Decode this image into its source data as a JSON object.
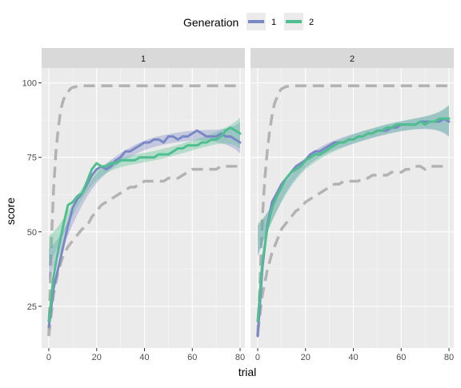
{
  "chart_data": {
    "type": "line",
    "facet_variable": "Generation",
    "facets": [
      {
        "label": "1",
        "reference_upper": {
          "x": [
            0,
            1,
            2,
            3,
            4,
            5,
            6,
            7,
            8,
            9,
            10,
            12,
            15,
            20,
            30,
            40,
            50,
            60,
            70,
            80
          ],
          "y": [
            15,
            45,
            64,
            77,
            85,
            91,
            94,
            96,
            97,
            98,
            98.5,
            98.8,
            99,
            99,
            99,
            99,
            99,
            99,
            99,
            99
          ]
        },
        "reference_lower": {
          "x": [
            0,
            2,
            4,
            6,
            8,
            10,
            12,
            14,
            16,
            18,
            20,
            22,
            24,
            26,
            28,
            30,
            32,
            34,
            36,
            38,
            40,
            42,
            44,
            46,
            48,
            50,
            52,
            54,
            56,
            58,
            60,
            62,
            64,
            66,
            68,
            70,
            72,
            74,
            76,
            78,
            80
          ],
          "y": [
            15,
            29,
            37,
            42,
            45,
            47,
            49,
            51,
            52,
            55,
            57,
            59,
            60,
            61,
            62,
            63,
            64,
            65,
            65,
            66,
            67,
            67,
            67,
            67,
            67,
            68,
            68,
            68,
            69,
            70,
            71,
            71,
            71,
            71,
            71,
            71,
            72,
            72,
            72,
            72,
            72
          ]
        },
        "series": [
          {
            "name": "1",
            "x": [
              0,
              2,
              4,
              6,
              8,
              10,
              12,
              14,
              16,
              18,
              20,
              22,
              24,
              26,
              28,
              30,
              32,
              34,
              36,
              38,
              40,
              42,
              44,
              46,
              48,
              50,
              52,
              54,
              56,
              58,
              60,
              62,
              64,
              66,
              68,
              70,
              72,
              74,
              76,
              78,
              80
            ],
            "y": [
              18,
              31,
              38,
              45,
              52,
              58,
              61,
              63,
              66,
              69,
              71,
              72,
              71,
              72,
              74,
              75,
              77,
              77,
              78,
              79,
              80,
              80,
              81,
              81,
              80,
              82,
              82,
              81,
              82,
              82,
              83,
              84,
              83,
              82,
              82,
              82,
              83,
              82,
              82,
              81,
              80
            ]
          },
          {
            "name": "2",
            "x": [
              0,
              2,
              4,
              6,
              8,
              10,
              12,
              14,
              16,
              18,
              20,
              22,
              24,
              26,
              28,
              30,
              32,
              34,
              36,
              38,
              40,
              42,
              44,
              46,
              48,
              50,
              52,
              54,
              56,
              58,
              60,
              62,
              64,
              66,
              68,
              70,
              72,
              74,
              76,
              78,
              80
            ],
            "y": [
              20,
              35,
              44,
              52,
              59,
              60,
              62,
              63,
              67,
              71,
              73,
              72,
              72,
              73,
              73,
              74,
              74,
              74,
              74,
              75,
              75,
              75,
              75,
              76,
              76,
              76,
              77,
              78,
              78,
              79,
              79,
              79,
              80,
              80,
              81,
              81,
              82,
              84,
              85,
              84,
              83
            ]
          }
        ]
      },
      {
        "label": "2",
        "reference_upper": {
          "x": [
            0,
            1,
            2,
            3,
            4,
            5,
            6,
            7,
            8,
            9,
            10,
            12,
            15,
            20,
            30,
            40,
            50,
            60,
            70,
            80
          ],
          "y": [
            15,
            35,
            55,
            68,
            77,
            84,
            89,
            93,
            95,
            97,
            98,
            98.8,
            99,
            99,
            99,
            99,
            99,
            99,
            99,
            99
          ]
        },
        "reference_lower": {
          "x": [
            0,
            2,
            4,
            6,
            8,
            10,
            12,
            14,
            16,
            18,
            20,
            22,
            24,
            26,
            28,
            30,
            32,
            34,
            36,
            38,
            40,
            42,
            44,
            46,
            48,
            50,
            52,
            54,
            56,
            58,
            60,
            62,
            64,
            66,
            68,
            70,
            72,
            74,
            76,
            78,
            80
          ],
          "y": [
            16,
            29,
            37,
            43,
            47,
            51,
            53,
            55,
            57,
            58,
            60,
            61,
            62,
            63,
            64,
            65,
            66,
            66,
            67,
            67,
            67,
            67,
            68,
            68,
            69,
            69,
            69,
            69,
            70,
            70,
            70,
            71,
            71,
            72,
            72,
            71,
            72,
            72,
            72,
            72,
            72
          ]
        },
        "series": [
          {
            "name": "1",
            "x": [
              0,
              2,
              4,
              6,
              8,
              10,
              12,
              14,
              16,
              18,
              20,
              22,
              24,
              26,
              28,
              30,
              32,
              34,
              36,
              38,
              40,
              42,
              44,
              46,
              48,
              50,
              52,
              54,
              56,
              58,
              60,
              62,
              64,
              66,
              68,
              70,
              72,
              74,
              76,
              78,
              80
            ],
            "y": [
              15,
              38,
              52,
              60,
              63,
              66,
              68,
              70,
              72,
              73,
              74,
              76,
              77,
              77,
              78,
              79,
              80,
              80,
              80,
              81,
              81,
              82,
              82,
              83,
              83,
              84,
              84,
              84,
              85,
              85,
              86,
              86,
              86,
              86,
              87,
              87,
              87,
              87,
              87,
              88,
              87
            ]
          },
          {
            "name": "2",
            "x": [
              0,
              2,
              4,
              6,
              8,
              10,
              12,
              14,
              16,
              18,
              20,
              22,
              24,
              26,
              28,
              30,
              32,
              34,
              36,
              38,
              40,
              42,
              44,
              46,
              48,
              50,
              52,
              54,
              56,
              58,
              60,
              62,
              64,
              66,
              68,
              70,
              72,
              74,
              76,
              78,
              80
            ],
            "y": [
              20,
              40,
              51,
              58,
              62,
              65,
              68,
              70,
              71,
              72,
              74,
              75,
              76,
              76,
              77,
              78,
              79,
              80,
              80,
              81,
              81,
              82,
              82,
              83,
              83,
              84,
              84,
              85,
              85,
              86,
              86,
              86,
              86,
              86,
              87,
              86,
              87,
              87,
              88,
              88,
              88
            ]
          }
        ]
      }
    ],
    "xlabel": "trial",
    "ylabel": "score",
    "xlim": [
      -3,
      82
    ],
    "ylim": [
      11,
      105
    ],
    "xticks": [
      0,
      20,
      40,
      60,
      80
    ],
    "yticks": [
      25,
      50,
      75,
      100
    ],
    "legend": {
      "title": "Generation",
      "position": "top",
      "entries": [
        "1",
        "2"
      ]
    },
    "grid": true
  },
  "colors": {
    "series_1": "#7b88c6",
    "series_2": "#4fbf8f",
    "reference": "#b3b3b3",
    "panel_bg": "#ebebeb",
    "strip_bg": "#d9d9d9"
  }
}
